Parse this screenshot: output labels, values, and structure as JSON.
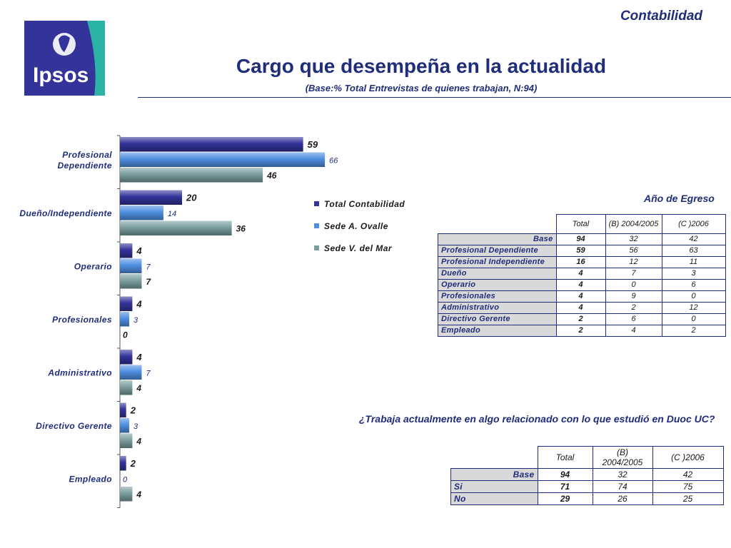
{
  "header": {
    "section": "Contabilidad"
  },
  "logo": {
    "text": "Ipsos",
    "colors": {
      "primary": "#33339a",
      "secondary": "#2bb3a6"
    }
  },
  "page": {
    "title": "Cargo que desempeña en la actualidad",
    "subtitle": "(Base:% Total Entrevistas de quienes trabajan, N:94)"
  },
  "chart_data": {
    "type": "bar",
    "orientation": "horizontal",
    "categories": [
      "Profesional Dependiente",
      "Dueño/Independiente",
      "Operario",
      "Profesionales",
      "Administrativo",
      "Directivo Gerente",
      "Empleado"
    ],
    "series": [
      {
        "name": "Total Contabilidad",
        "values": [
          59,
          20,
          4,
          4,
          4,
          2,
          2
        ],
        "color": "#33339a"
      },
      {
        "name": "Sede A. Ovalle",
        "values": [
          66,
          14,
          7,
          3,
          7,
          3,
          0
        ],
        "color": "#4f8fe0"
      },
      {
        "name": "Sede V. del Mar",
        "values": [
          46,
          36,
          7,
          0,
          4,
          4,
          4
        ],
        "color": "#7a9e9e"
      }
    ],
    "xlim": [
      0,
      70
    ],
    "legend": "right",
    "grid": false
  },
  "table1": {
    "title": "Año de Egreso",
    "headers": [
      "Total",
      "(B) 2004/2005",
      "(C )2006"
    ],
    "rows": [
      {
        "label": "Base",
        "values": [
          "94",
          "32",
          "42"
        ]
      },
      {
        "label": "Profesional Dependiente",
        "values": [
          "59",
          "56",
          "63"
        ]
      },
      {
        "label": "Profesional Independiente",
        "values": [
          "16",
          "12",
          "11"
        ]
      },
      {
        "label": "Dueño",
        "values": [
          "4",
          "7",
          "3"
        ]
      },
      {
        "label": "Operario",
        "values": [
          "4",
          "0",
          "6"
        ]
      },
      {
        "label": "Profesionales",
        "values": [
          "4",
          "9",
          "0"
        ]
      },
      {
        "label": "Administrativo",
        "values": [
          "4",
          "2",
          "12"
        ]
      },
      {
        "label": "Directivo Gerente",
        "values": [
          "2",
          "6",
          "0"
        ]
      },
      {
        "label": "Empleado",
        "values": [
          "2",
          "4",
          "2"
        ]
      }
    ]
  },
  "table2": {
    "question": "¿Trabaja actualmente en algo relacionado con lo que estudió en Duoc UC?",
    "headers": [
      "Total",
      "(B) 2004/2005",
      "(C )2006"
    ],
    "rows": [
      {
        "label": "Base",
        "values": [
          "94",
          "32",
          "42"
        ]
      },
      {
        "label": "Si",
        "values": [
          "71",
          "74",
          "75"
        ]
      },
      {
        "label": "No",
        "values": [
          "29",
          "26",
          "25"
        ]
      }
    ]
  }
}
